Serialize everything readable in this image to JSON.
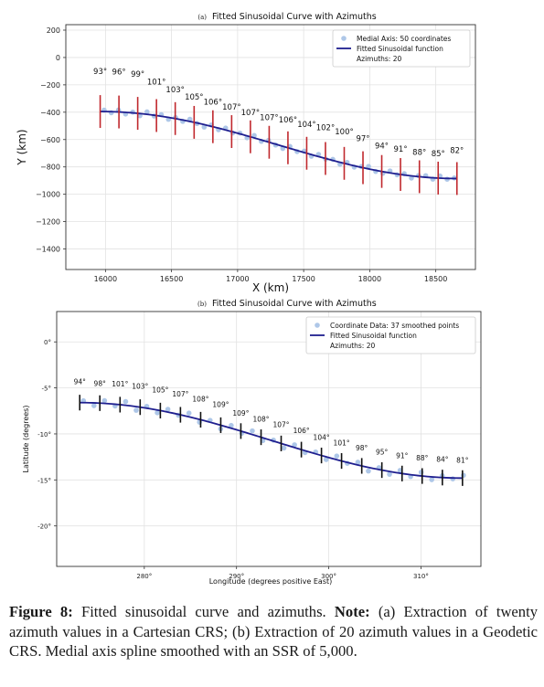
{
  "figure": {
    "caption_label": "Figure 8:",
    "caption_text": " Fitted sinusoidal curve and azimuths. ",
    "caption_note_label": "Note:",
    "caption_note_text": " (a) Extraction of twenty azimuth values in a Cartesian CRS; (b) Extraction of 20 azimuth values in a Geodetic CRS. Medial axis spline smoothed with an SSR of 5,000."
  },
  "chart_data": [
    {
      "type": "scatter",
      "panel_label": "(a)",
      "title": "Fitted Sinusoidal Curve with Azimuths",
      "xlabel": "X (km)",
      "ylabel": "Y (km)",
      "xlim": [
        15700,
        18800
      ],
      "ylim": [
        -1550,
        240
      ],
      "xticks": [
        16000,
        16500,
        17000,
        17500,
        18000,
        18500
      ],
      "yticks": [
        200,
        0,
        -200,
        -400,
        -600,
        -800,
        -1000,
        -1200,
        -1400
      ],
      "xtick_labels": [
        "16000",
        "16500",
        "17000",
        "17500",
        "18000",
        "18500"
      ],
      "ytick_labels": [
        "200",
        "0",
        "−200",
        "−400",
        "−600",
        "−800",
        "−1000",
        "−1200",
        "−1400"
      ],
      "grid": true,
      "legend_position": "top-right",
      "legend": [
        "Medial Axis: 50 coordinates",
        "Fitted Sinusoidal function",
        "Azimuths: 20"
      ],
      "colors": {
        "points": "#aec7e8",
        "curve": "#1f1f8f",
        "azimuth": "#c0282d"
      },
      "curve": {
        "x0": 15960,
        "x1": 18660,
        "y_mid": -640,
        "amplitude": 245
      },
      "points": {
        "count": 50,
        "x0": 15990,
        "x1": 18640,
        "jitter": [
          10,
          -8,
          14,
          -12,
          6,
          -16,
          18,
          -6,
          12,
          -14,
          8,
          -10,
          16,
          -4,
          -18,
          10,
          -12,
          14,
          -8,
          6,
          -14,
          18,
          -10,
          12,
          -6,
          -16,
          14,
          -8,
          10,
          -12,
          16,
          -4,
          8,
          -14,
          12,
          -10,
          6,
          18,
          -8,
          -12,
          14,
          -6,
          10,
          -16,
          8,
          12,
          -10,
          16,
          -6,
          4
        ]
      },
      "azimuths": {
        "x": [
          15960,
          16102,
          16244,
          16386,
          16528,
          16671,
          16813,
          16955,
          17097,
          17239,
          17381,
          17523,
          17665,
          17807,
          17949,
          18091,
          18233,
          18376,
          18518,
          18660
        ],
        "labels": [
          "93°",
          "96°",
          "99°",
          "101°",
          "103°",
          "105°",
          "106°",
          "107°",
          "107°",
          "107°",
          "106°",
          "104°",
          "102°",
          "100°",
          "97°",
          "94°",
          "91°",
          "88°",
          "85°",
          "82°"
        ],
        "half_length_km": 120
      }
    },
    {
      "type": "scatter",
      "panel_label": "(b)",
      "title": "Fitted Sinusoidal Curve with Azimuths",
      "xlabel": "Longitude (degrees positive East)",
      "ylabel": "Latitude (degrees)",
      "xlim": [
        270.5,
        316.5
      ],
      "ylim": [
        -24.4,
        3.3
      ],
      "xticks": [
        280,
        290,
        300,
        310
      ],
      "yticks": [
        0,
        -5,
        -10,
        -15,
        -20
      ],
      "xtick_labels": [
        "280°",
        "290°",
        "300°",
        "310°"
      ],
      "ytick_labels": [
        "0°",
        "-5°",
        "-10°",
        "-15°",
        "-20°"
      ],
      "grid": true,
      "legend_position": "top-right",
      "legend": [
        "Coordinate Data: 37 smoothed points",
        "Fitted Sinusoidal function",
        "Azimuths: 20"
      ],
      "colors": {
        "points": "#aec7e8",
        "curve": "#1f1f8f",
        "azimuth": "#111111"
      },
      "curve": {
        "x0": 273,
        "x1": 314.5,
        "y_mid": -10.7,
        "amplitude": 4.1
      },
      "points": {
        "count": 37,
        "x0": 273.4,
        "x1": 314.6,
        "jitter": [
          0.2,
          -0.3,
          0.3,
          -0.2,
          0.4,
          -0.4,
          0.2,
          -0.3,
          0.3,
          -0.1,
          0.4,
          -0.3,
          0.2,
          -0.4,
          0.3,
          -0.2,
          0.4,
          -0.3,
          0.1,
          -0.4,
          0.3,
          -0.2,
          0.2,
          -0.3,
          0.4,
          -0.1,
          0.3,
          -0.4,
          0.2,
          -0.3,
          0.3,
          -0.2,
          0.4,
          -0.3,
          0.2,
          -0.1,
          0.3
        ]
      },
      "azimuths": {
        "x": [
          273.0,
          275.18,
          277.37,
          279.55,
          281.74,
          283.92,
          286.11,
          288.29,
          290.47,
          292.66,
          294.84,
          297.03,
          299.21,
          301.39,
          303.58,
          305.76,
          307.95,
          310.13,
          312.32,
          314.5
        ],
        "labels": [
          "94°",
          "98°",
          "101°",
          "103°",
          "105°",
          "107°",
          "108°",
          "109°",
          "109°",
          "108°",
          "107°",
          "106°",
          "104°",
          "101°",
          "98°",
          "95°",
          "91°",
          "88°",
          "84°",
          "81°"
        ],
        "half_length_deg": 0.85
      }
    }
  ]
}
